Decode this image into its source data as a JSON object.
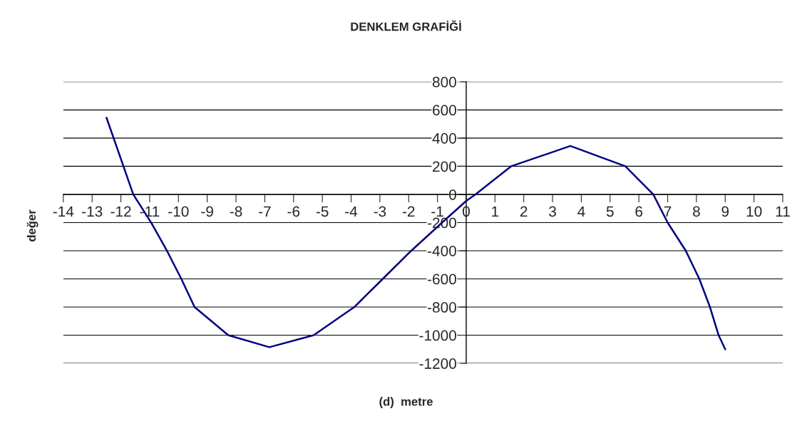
{
  "chart_data": {
    "type": "line",
    "title": "DENKLEM GRAFİĞİ",
    "xlabel": "(d)  metre",
    "ylabel": "değer",
    "x": [
      -12.5,
      -11.57,
      -10.95,
      -10.4,
      -9.9,
      -9.44,
      -8.27,
      -6.84,
      -5.3,
      -3.89,
      -2.9,
      -1.91,
      -0.84,
      0,
      0.32,
      1.56,
      3.62,
      5.53,
      6.5,
      7.0,
      7.63,
      8.1,
      8.47,
      8.77,
      9.0
    ],
    "series": [
      {
        "color": "#000080",
        "values": [
          545,
          0,
          -200,
          -400,
          -600,
          -800,
          -1000,
          -1085,
          -1000,
          -800,
          -600,
          -400,
          -200,
          -46,
          0,
          200,
          344,
          200,
          0,
          -200,
          -400,
          -600,
          -800,
          -1000,
          -1100
        ]
      }
    ],
    "xlim": [
      -14,
      11
    ],
    "xticks": [
      -14,
      -13,
      -12,
      -11,
      -10,
      -9,
      -8,
      -7,
      -6,
      -5,
      -4,
      -3,
      -2,
      -1,
      0,
      1,
      2,
      3,
      4,
      5,
      6,
      7,
      8,
      9,
      10,
      11
    ],
    "ylim": [
      -1200,
      800
    ],
    "yticks": [
      -1200,
      -1000,
      -800,
      -600,
      -400,
      -200,
      0,
      200,
      400,
      600,
      800
    ],
    "grid": "y",
    "marker": "none",
    "line_style": "solid"
  }
}
